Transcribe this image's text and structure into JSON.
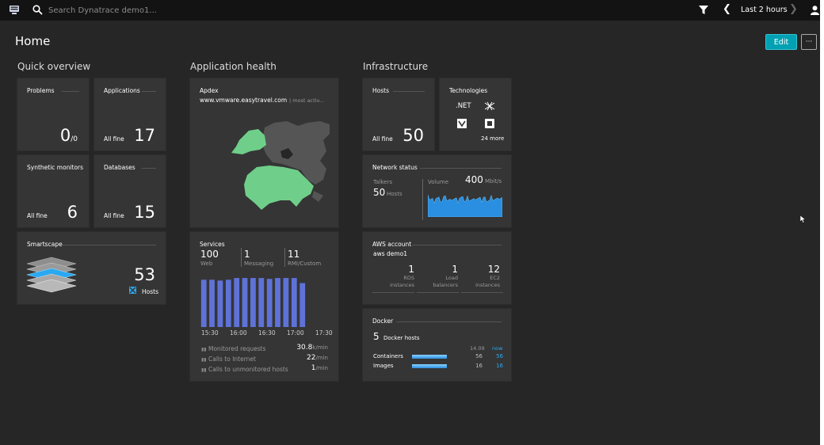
{
  "topbar": {
    "search_placeholder": "Search Dynatrace demo1...",
    "timeframe": "Last 2 hours",
    "icons": [
      "menu-icon",
      "search-icon",
      "filter-icon",
      "chevron-left-icon",
      "chevron-right-icon",
      "user-icon"
    ]
  },
  "page": {
    "title": "Home",
    "edit_label": "Edit",
    "more_label": "···"
  },
  "sections": {
    "quick": "Quick overview",
    "app": "Application health",
    "infra": "Infrastructure"
  },
  "quick": {
    "problems": {
      "title": "Problems",
      "value": "0",
      "suffix": "/0"
    },
    "applications": {
      "title": "Applications",
      "status": "All fine",
      "value": "17"
    },
    "synthetic": {
      "title": "Synthetic monitors",
      "status": "All fine",
      "value": "6"
    },
    "databases": {
      "title": "Databases",
      "status": "All fine",
      "value": "15"
    },
    "smartscape": {
      "title": "Smartscape",
      "value": "53",
      "label": "Hosts"
    }
  },
  "apdex": {
    "title": "Apdex",
    "app": "www.vmware.easytravel.com",
    "note": "| most activ..."
  },
  "services": {
    "title": "Services",
    "stats": [
      {
        "value": "100",
        "label": "Web"
      },
      {
        "value": "1",
        "label": "Messaging"
      },
      {
        "value": "11",
        "label": "RMI/Custom"
      }
    ],
    "chart_data": {
      "type": "bar",
      "x_ticks": [
        "15:30",
        "16:00",
        "16:30",
        "17:00",
        "17:30"
      ],
      "values": [
        56,
        56,
        55,
        56,
        58,
        58,
        58,
        58,
        57,
        58,
        58,
        58,
        52,
        0,
        0,
        0
      ],
      "ylim": [
        0,
        60
      ],
      "color": "#5e72d8"
    },
    "metrics": [
      {
        "label": "Monitored requests",
        "value": "30.8",
        "unit": "k/min"
      },
      {
        "label": "Calls to Internet",
        "value": "22",
        "unit": "/min"
      },
      {
        "label": "Calls to unmonitored hosts",
        "value": "1",
        "unit": "/min"
      }
    ]
  },
  "hosts": {
    "title": "Hosts",
    "status": "All fine",
    "value": "50"
  },
  "technologies": {
    "title": "Technologies",
    "net_label": ".NET",
    "more": "24 more"
  },
  "network": {
    "title": "Network status",
    "talkers_label": "Talkers",
    "talkers_value": "50",
    "talkers_unit": "Hosts",
    "volume_label": "Volume",
    "volume_value": "400",
    "volume_unit": "Mbit/s"
  },
  "aws": {
    "title": "AWS account",
    "account": "aws demo1",
    "stats": [
      {
        "value": "1",
        "label1": "RDS",
        "label2": "instances"
      },
      {
        "value": "1",
        "label1": "Load",
        "label2": "balancers"
      },
      {
        "value": "12",
        "label1": "EC2",
        "label2": "instances"
      }
    ]
  },
  "docker": {
    "title": "Docker",
    "hosts_value": "5",
    "hosts_label": "Docker hosts",
    "col_then": "14.09",
    "col_now": "now",
    "rows": [
      {
        "label": "Containers",
        "then": "56",
        "now": "56"
      },
      {
        "label": "Images",
        "then": "16",
        "now": "16"
      }
    ]
  }
}
